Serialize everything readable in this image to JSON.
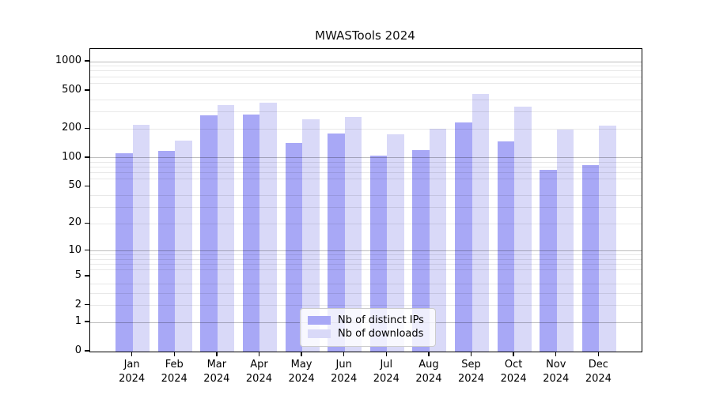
{
  "chart_data": {
    "type": "bar",
    "title": "MWASTools 2024",
    "categories": [
      "Jan 2024",
      "Feb 2024",
      "Mar 2024",
      "Apr 2024",
      "May 2024",
      "Jun 2024",
      "Jul 2024",
      "Aug 2024",
      "Sep 2024",
      "Oct 2024",
      "Nov 2024",
      "Dec 2024"
    ],
    "series": [
      {
        "name": "Nb of distinct IPs",
        "color": "#a8a8f6",
        "values": [
          111,
          119,
          277,
          285,
          143,
          179,
          106,
          121,
          234,
          150,
          75,
          84
        ]
      },
      {
        "name": "Nb of downloads",
        "color": "#d9d9f8",
        "values": [
          220,
          152,
          353,
          374,
          252,
          266,
          175,
          202,
          464,
          340,
          198,
          216
        ]
      }
    ],
    "xlabel": "",
    "ylabel": "",
    "yscale": "log10(1+y)",
    "ylim": [
      0,
      1355
    ],
    "yticks": [
      0,
      1,
      2,
      5,
      10,
      20,
      50,
      100,
      200,
      500,
      1000
    ],
    "grid_major": [
      1,
      10,
      100,
      1000
    ],
    "grid_minor": [
      2,
      3,
      4,
      6,
      7,
      8,
      9,
      20,
      30,
      40,
      60,
      70,
      80,
      90,
      200,
      300,
      400,
      600,
      700,
      800,
      900
    ],
    "grid": "on",
    "legend_position": "lower center inside plot"
  },
  "colors": {
    "background": "#ffffff",
    "spine": "#000000",
    "bar_distinct_ips": "#a8a8f6",
    "bar_downloads": "#d9d9f8",
    "grid_major": "#bdbdbd",
    "grid_minor": "#e8e8e8",
    "legend_border": "#cccccc"
  }
}
